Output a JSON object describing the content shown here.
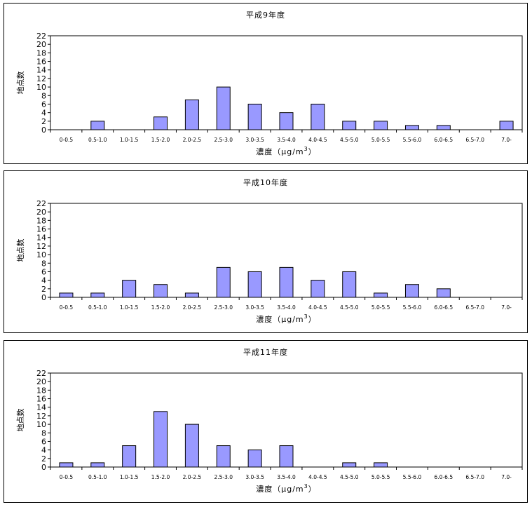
{
  "chart_data": [
    {
      "type": "bar",
      "title": "平成9年度",
      "ylabel": "地点数",
      "xlabel": "濃度（μg/m",
      "xlabel_sup": "3",
      "xlabel_end": "）",
      "ylim": [
        0,
        22
      ],
      "yticks": [
        0,
        2,
        4,
        6,
        8,
        10,
        12,
        14,
        16,
        18,
        20,
        22
      ],
      "categories": [
        "0-0.5",
        "0.5-1.0",
        "1.0-1.5",
        "1.5-2.0",
        "2.0-2.5",
        "2.5-3.0",
        "3.0-3.5",
        "3.5-4.0",
        "4.0-4.5",
        "4.5-5.0",
        "5.0-5.5",
        "5.5-6.0",
        "6.0-6.5",
        "6.5-7.0",
        "7.0-"
      ],
      "values": [
        0,
        2,
        0,
        3,
        7,
        10,
        6,
        4,
        6,
        2,
        2,
        1,
        1,
        0,
        2
      ],
      "bar_color": "#9999ff",
      "grid": false
    },
    {
      "type": "bar",
      "title": "平成10年度",
      "ylabel": "地点数",
      "xlabel": "濃度（μg/m",
      "xlabel_sup": "3",
      "xlabel_end": "）",
      "ylim": [
        0,
        22
      ],
      "yticks": [
        0,
        2,
        4,
        6,
        8,
        10,
        12,
        14,
        16,
        18,
        20,
        22
      ],
      "categories": [
        "0-0.5",
        "0.5-1.0",
        "1.0-1.5",
        "1.5-2.0",
        "2.0-2.5",
        "2.5-3.0",
        "3.0-3.5",
        "3.5-4.0",
        "4.0-4.5",
        "4.5-5.0",
        "5.0-5.5",
        "5.5-6.0",
        "6.0-6.5",
        "6.5-7.0",
        "7.0-"
      ],
      "values": [
        1,
        1,
        4,
        3,
        1,
        7,
        6,
        7,
        4,
        6,
        1,
        3,
        2,
        0,
        0
      ],
      "bar_color": "#9999ff",
      "grid": false
    },
    {
      "type": "bar",
      "title": "平成11年度",
      "ylabel": "地点数",
      "xlabel": "濃度（μg/m",
      "xlabel_sup": "3",
      "xlabel_end": "）",
      "ylim": [
        0,
        22
      ],
      "yticks": [
        0,
        2,
        4,
        6,
        8,
        10,
        12,
        14,
        16,
        18,
        20,
        22
      ],
      "categories": [
        "0-0.5",
        "0.5-1.0",
        "1.0-1.5",
        "1.5-2.0",
        "2.0-2.5",
        "2.5-3.0",
        "3.0-3.5",
        "3.5-4.0",
        "4.0-4.5",
        "4.5-5.0",
        "5.0-5.5",
        "5.5-6.0",
        "6.0-6.5",
        "6.5-7.0",
        "7.0-"
      ],
      "values": [
        1,
        1,
        5,
        13,
        10,
        5,
        4,
        5,
        0,
        1,
        1,
        0,
        0,
        0,
        0
      ],
      "bar_color": "#9999ff",
      "grid": false
    }
  ]
}
